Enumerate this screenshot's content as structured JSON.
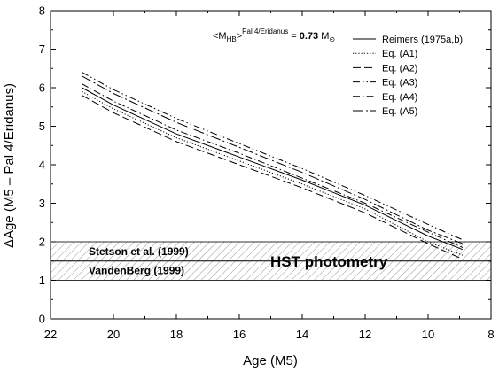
{
  "chart_data": {
    "type": "line",
    "xlabel": "Age (M5)",
    "ylabel": "ΔAge (M5 – Pal 4/Eridanus)",
    "xlim": [
      22,
      8
    ],
    "ylim": [
      0,
      8
    ],
    "x_ticks": [
      22,
      20,
      18,
      16,
      14,
      12,
      10,
      8
    ],
    "y_ticks": [
      0,
      1,
      2,
      3,
      4,
      5,
      6,
      7,
      8
    ],
    "x_reversed": true,
    "legend_position": "top-right",
    "annotation": {
      "prefix": "<M",
      "sub": "HB",
      "mid": ">",
      "sup": "Pal 4/Eridanus",
      "eq": " = ",
      "value": "0.73",
      "unit": " M",
      "unit_symbol": "⊙"
    },
    "bands": [
      {
        "label": "Stetson et al. (1999)",
        "y_range": [
          1.5,
          2.0
        ]
      },
      {
        "label": "VandenBerg (1999)",
        "y_range": [
          1.0,
          1.5
        ]
      }
    ],
    "band_overlay_label": "HST photometry",
    "series": [
      {
        "name": "Reimers (1975a,b)",
        "dash": "solid",
        "points": [
          [
            21,
            6.0
          ],
          [
            20,
            5.55
          ],
          [
            18,
            4.8
          ],
          [
            16,
            4.2
          ],
          [
            14,
            3.6
          ],
          [
            12,
            2.95
          ],
          [
            10,
            2.15
          ],
          [
            8.9,
            1.8
          ]
        ]
      },
      {
        "name": "Eq. (A1)",
        "dash": "dotted",
        "points": [
          [
            21,
            5.9
          ],
          [
            20,
            5.45
          ],
          [
            18,
            4.7
          ],
          [
            16,
            4.1
          ],
          [
            14,
            3.5
          ],
          [
            12,
            2.85
          ],
          [
            10,
            2.0
          ],
          [
            8.9,
            1.65
          ]
        ]
      },
      {
        "name": "Eq. (A2)",
        "dash": "longdash",
        "points": [
          [
            21,
            5.8
          ],
          [
            20,
            5.35
          ],
          [
            18,
            4.6
          ],
          [
            16,
            4.0
          ],
          [
            14,
            3.4
          ],
          [
            12,
            2.75
          ],
          [
            10,
            1.95
          ],
          [
            8.9,
            1.55
          ]
        ]
      },
      {
        "name": "Eq. (A3)",
        "dash": "dashdotdot",
        "points": [
          [
            21,
            6.4
          ],
          [
            20,
            5.95
          ],
          [
            18,
            5.2
          ],
          [
            16,
            4.55
          ],
          [
            14,
            3.9
          ],
          [
            12,
            3.2
          ],
          [
            10,
            2.45
          ],
          [
            8.9,
            2.05
          ]
        ]
      },
      {
        "name": "Eq. (A4)",
        "dash": "dashdot",
        "points": [
          [
            21,
            6.1
          ],
          [
            20,
            5.65
          ],
          [
            18,
            4.9
          ],
          [
            16,
            4.3
          ],
          [
            14,
            3.65
          ],
          [
            12,
            3.0
          ],
          [
            10,
            2.25
          ],
          [
            8.9,
            1.85
          ]
        ]
      },
      {
        "name": "Eq. (A5)",
        "dash": "dashdotlong",
        "points": [
          [
            21,
            6.3
          ],
          [
            20,
            5.85
          ],
          [
            18,
            5.1
          ],
          [
            16,
            4.45
          ],
          [
            14,
            3.8
          ],
          [
            12,
            3.1
          ],
          [
            10,
            2.3
          ],
          [
            8.9,
            1.95
          ]
        ]
      }
    ]
  }
}
